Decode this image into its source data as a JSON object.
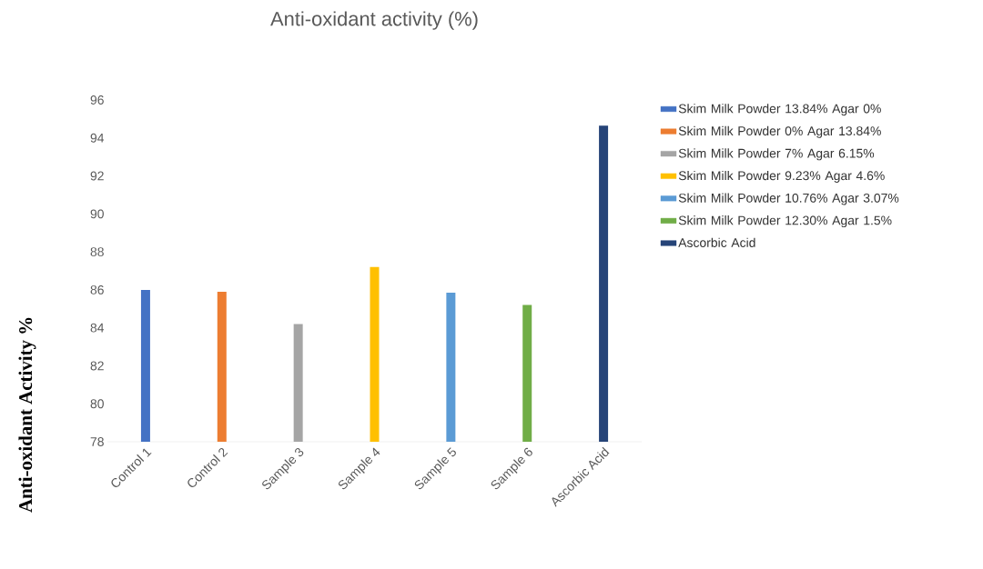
{
  "chart_data": {
    "type": "bar",
    "title": "Anti-oxidant activity (%)",
    "ylabel": "Anti-oxidant Activity %",
    "categories": [
      "Control 1",
      "Control 2",
      "Sample 3",
      "Sample 4",
      "Sample 5",
      "Sample 6",
      "Ascorbic Acid"
    ],
    "series": [
      {
        "name": "Skim Milk Powder 13.84% Agar 0%",
        "color": "#4472c4",
        "values": [
          86.0,
          null,
          null,
          null,
          null,
          null,
          null
        ]
      },
      {
        "name": "Skim Milk Powder 0% Agar 13.84%",
        "color": "#ed7d31",
        "values": [
          null,
          85.9,
          null,
          null,
          null,
          null,
          null
        ]
      },
      {
        "name": "Skim Milk Powder 7% Agar 6.15%",
        "color": "#a5a5a5",
        "values": [
          null,
          null,
          84.2,
          null,
          null,
          null,
          null
        ]
      },
      {
        "name": "Skim Milk Powder 9.23% Agar 4.6%",
        "color": "#ffc000",
        "values": [
          null,
          null,
          null,
          87.2,
          null,
          null,
          null
        ]
      },
      {
        "name": "Skim Milk Powder 10.76% Agar 3.07%",
        "color": "#5b9bd5",
        "values": [
          null,
          null,
          null,
          null,
          85.85,
          null,
          null
        ]
      },
      {
        "name": "Skim Milk Powder 12.30% Agar 1.5%",
        "color": "#70ad47",
        "values": [
          null,
          null,
          null,
          null,
          null,
          85.2,
          null
        ]
      },
      {
        "name": "Ascorbic Acid",
        "color": "#264478",
        "values": [
          null,
          null,
          null,
          null,
          null,
          null,
          94.65
        ]
      }
    ],
    "ylim": [
      78,
      96
    ],
    "yticks": [
      78,
      80,
      82,
      84,
      86,
      88,
      90,
      92,
      94,
      96
    ],
    "legend": "right"
  }
}
